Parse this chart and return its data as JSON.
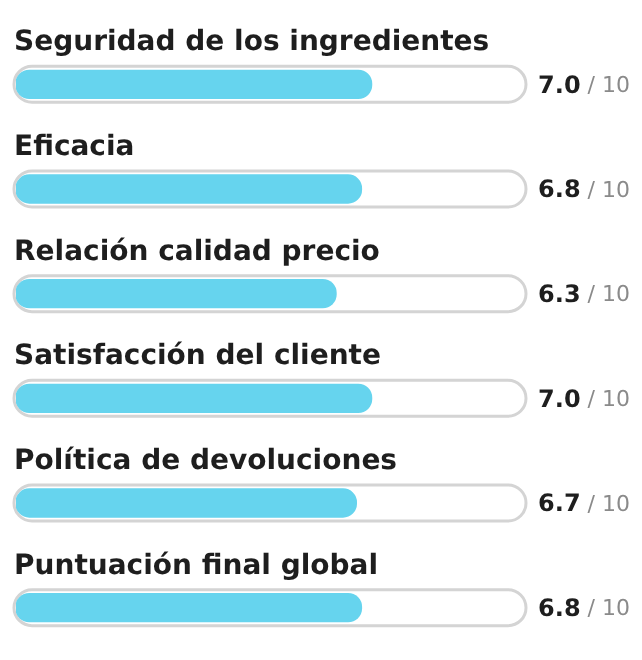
{
  "chart_data": {
    "type": "bar",
    "orientation": "horizontal",
    "categories": [
      "Seguridad de los ingredientes",
      "Eficacia",
      "Relación calidad precio",
      "Satisfacción del cliente",
      "Política de devoluciones",
      "Puntuación final global"
    ],
    "values": [
      7.0,
      6.8,
      6.3,
      7.0,
      6.7,
      6.8
    ],
    "value_labels": [
      "7.0",
      "6.8",
      "6.3",
      "7.0",
      "6.7",
      "6.8"
    ],
    "annotations": [
      "/ 10",
      "/ 10",
      "/ 10",
      "/ 10",
      "/ 10",
      "/ 10"
    ],
    "color": "#66d4ee",
    "xlim": [
      0,
      10
    ]
  }
}
